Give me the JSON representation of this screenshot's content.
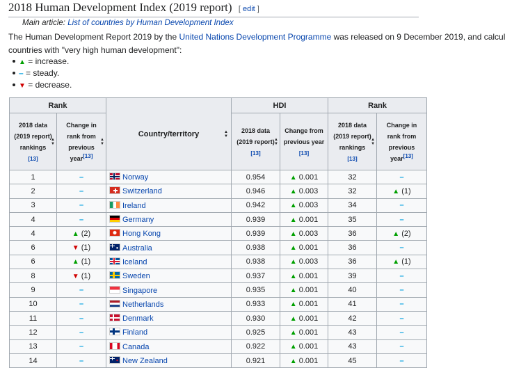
{
  "heading": {
    "title": "2018 Human Development Index (2019 report)",
    "edit_open": "[ ",
    "edit_label": "edit",
    "edit_close": " ]"
  },
  "main_article": {
    "prefix": "Main article: ",
    "link": "List of countries by Human Development Index"
  },
  "paragraph": {
    "part1": "The Human Development Report 2019 by the ",
    "link": "United Nations Development Programme",
    "part2": " was released on 9 December 2019, and calcul",
    "line2": "countries with \"very high human development\":"
  },
  "legend": [
    {
      "symbol": "▲",
      "kind": "up",
      "text": " = increase."
    },
    {
      "symbol": "–",
      "kind": "steady",
      "text": " = steady."
    },
    {
      "symbol": "▼",
      "kind": "down",
      "text": " = decrease."
    }
  ],
  "table": {
    "group_rank": "Rank",
    "group_hdi": "HDI",
    "group_rank2": "Rank",
    "col_2018_rank": "2018 data (2019 report) rankings",
    "col_change_rank": "Change in rank from previous year",
    "col_country": "Country/territory",
    "col_2018_hdi": "2018 data (2019 report)",
    "col_change_hdi": "Change from previous year",
    "col_2018_rank2": "2018 data (2019 report) rankings",
    "col_change_rank2": "Change in rank from previous year",
    "ref": "[13]",
    "sort_icon": "sort-icon",
    "rows": [
      {
        "rank": "1",
        "change": "–",
        "change_kind": "steady",
        "country": "Norway",
        "flag": "norway",
        "hdi": "0.954",
        "hdi_change": "0.001",
        "rank2": "32",
        "change2": "–",
        "change2_kind": "steady"
      },
      {
        "rank": "2",
        "change": "–",
        "change_kind": "steady",
        "country": "Switzerland",
        "flag": "switzerland",
        "hdi": "0.946",
        "hdi_change": "0.003",
        "rank2": "32",
        "change2": "(1)",
        "change2_kind": "up"
      },
      {
        "rank": "3",
        "change": "–",
        "change_kind": "steady",
        "country": "Ireland",
        "flag": "ireland",
        "hdi": "0.942",
        "hdi_change": "0.003",
        "rank2": "34",
        "change2": "–",
        "change2_kind": "steady"
      },
      {
        "rank": "4",
        "change": "–",
        "change_kind": "steady",
        "country": "Germany",
        "flag": "germany",
        "hdi": "0.939",
        "hdi_change": "0.001",
        "rank2": "35",
        "change2": "–",
        "change2_kind": "steady"
      },
      {
        "rank": "4",
        "change": "(2)",
        "change_kind": "up",
        "country": "Hong Kong",
        "flag": "hongkong",
        "hdi": "0.939",
        "hdi_change": "0.003",
        "rank2": "36",
        "change2": "(2)",
        "change2_kind": "up"
      },
      {
        "rank": "6",
        "change": "(1)",
        "change_kind": "down",
        "country": "Australia",
        "flag": "australia",
        "hdi": "0.938",
        "hdi_change": "0.001",
        "rank2": "36",
        "change2": "–",
        "change2_kind": "steady"
      },
      {
        "rank": "6",
        "change": "(1)",
        "change_kind": "up",
        "country": "Iceland",
        "flag": "iceland",
        "hdi": "0.938",
        "hdi_change": "0.003",
        "rank2": "36",
        "change2": "(1)",
        "change2_kind": "up"
      },
      {
        "rank": "8",
        "change": "(1)",
        "change_kind": "down",
        "country": "Sweden",
        "flag": "sweden",
        "hdi": "0.937",
        "hdi_change": "0.001",
        "rank2": "39",
        "change2": "–",
        "change2_kind": "steady"
      },
      {
        "rank": "9",
        "change": "–",
        "change_kind": "steady",
        "country": "Singapore",
        "flag": "singapore",
        "hdi": "0.935",
        "hdi_change": "0.001",
        "rank2": "40",
        "change2": "–",
        "change2_kind": "steady"
      },
      {
        "rank": "10",
        "change": "–",
        "change_kind": "steady",
        "country": "Netherlands",
        "flag": "netherlands",
        "hdi": "0.933",
        "hdi_change": "0.001",
        "rank2": "41",
        "change2": "–",
        "change2_kind": "steady"
      },
      {
        "rank": "11",
        "change": "–",
        "change_kind": "steady",
        "country": "Denmark",
        "flag": "denmark",
        "hdi": "0.930",
        "hdi_change": "0.001",
        "rank2": "42",
        "change2": "–",
        "change2_kind": "steady"
      },
      {
        "rank": "12",
        "change": "–",
        "change_kind": "steady",
        "country": "Finland",
        "flag": "finland",
        "hdi": "0.925",
        "hdi_change": "0.001",
        "rank2": "43",
        "change2": "–",
        "change2_kind": "steady"
      },
      {
        "rank": "13",
        "change": "–",
        "change_kind": "steady",
        "country": "Canada",
        "flag": "canada",
        "hdi": "0.922",
        "hdi_change": "0.001",
        "rank2": "43",
        "change2": "–",
        "change2_kind": "steady"
      },
      {
        "rank": "14",
        "change": "–",
        "change_kind": "steady",
        "country": "New Zealand",
        "flag": "newzealand",
        "hdi": "0.921",
        "hdi_change": "0.001",
        "rank2": "45",
        "change2": "–",
        "change2_kind": "steady"
      }
    ]
  },
  "colors": {
    "link": "#0645ad",
    "up": "#00a000",
    "down": "#d00000",
    "steady": "#00a0e0",
    "header_bg": "#eaecf0",
    "border": "#a2a9b1"
  }
}
